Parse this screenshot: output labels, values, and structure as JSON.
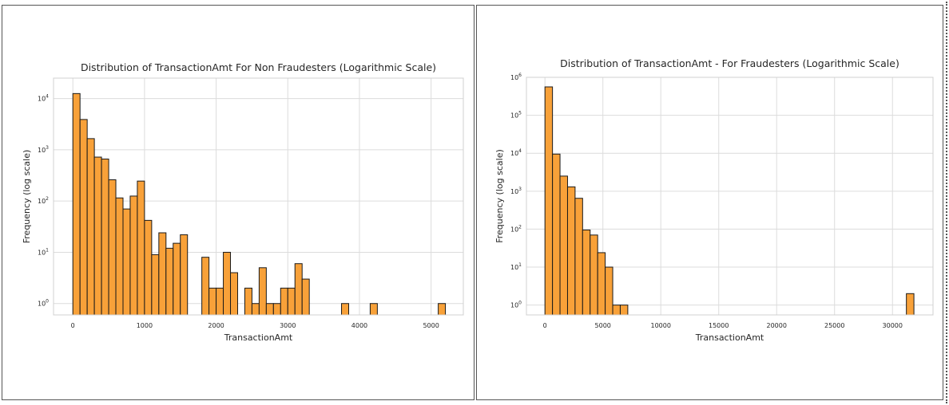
{
  "chart_data": [
    {
      "type": "bar",
      "title": "Distribution of TransactionAmt For Non Fraudesters (Logarithmic Scale)",
      "xlabel": "TransactionAmt",
      "ylabel": "Frequency (log scale)",
      "yscale": "log",
      "xlim": [
        -270,
        5450
      ],
      "ylim": [
        0.6,
        25000
      ],
      "x_ticks": [
        0,
        1000,
        2000,
        3000,
        4000,
        5000
      ],
      "x_tick_labels": [
        "0",
        "1000",
        "2000",
        "3000",
        "4000",
        "5000"
      ],
      "y_ticks": [
        1,
        10,
        100,
        1000,
        10000
      ],
      "y_tick_labels": [
        {
          "base": "10",
          "exp": "0"
        },
        {
          "base": "10",
          "exp": "1"
        },
        {
          "base": "10",
          "exp": "2"
        },
        {
          "base": "10",
          "exp": "3"
        },
        {
          "base": "10",
          "exp": "4"
        }
      ],
      "grid": true,
      "bar_color": "#f8a139",
      "edge_color": "#1a1a1a",
      "bins": [
        {
          "x0": 0,
          "x1": 100,
          "value": 12500
        },
        {
          "x0": 100,
          "x1": 200,
          "value": 3900
        },
        {
          "x0": 200,
          "x1": 300,
          "value": 1650
        },
        {
          "x0": 300,
          "x1": 400,
          "value": 720
        },
        {
          "x0": 400,
          "x1": 500,
          "value": 660
        },
        {
          "x0": 500,
          "x1": 600,
          "value": 260
        },
        {
          "x0": 600,
          "x1": 700,
          "value": 115
        },
        {
          "x0": 700,
          "x1": 800,
          "value": 70
        },
        {
          "x0": 800,
          "x1": 900,
          "value": 125
        },
        {
          "x0": 900,
          "x1": 1000,
          "value": 245
        },
        {
          "x0": 1000,
          "x1": 1100,
          "value": 42
        },
        {
          "x0": 1100,
          "x1": 1200,
          "value": 9
        },
        {
          "x0": 1200,
          "x1": 1300,
          "value": 24
        },
        {
          "x0": 1300,
          "x1": 1400,
          "value": 12
        },
        {
          "x0": 1400,
          "x1": 1500,
          "value": 15
        },
        {
          "x0": 1500,
          "x1": 1600,
          "value": 22
        },
        {
          "x0": 1800,
          "x1": 1900,
          "value": 8
        },
        {
          "x0": 1900,
          "x1": 2000,
          "value": 2
        },
        {
          "x0": 2000,
          "x1": 2100,
          "value": 2
        },
        {
          "x0": 2100,
          "x1": 2200,
          "value": 10
        },
        {
          "x0": 2200,
          "x1": 2300,
          "value": 4
        },
        {
          "x0": 2400,
          "x1": 2500,
          "value": 2
        },
        {
          "x0": 2500,
          "x1": 2600,
          "value": 1
        },
        {
          "x0": 2600,
          "x1": 2700,
          "value": 5
        },
        {
          "x0": 2700,
          "x1": 2800,
          "value": 1
        },
        {
          "x0": 2800,
          "x1": 2900,
          "value": 1
        },
        {
          "x0": 2900,
          "x1": 3000,
          "value": 2
        },
        {
          "x0": 3000,
          "x1": 3100,
          "value": 2
        },
        {
          "x0": 3100,
          "x1": 3200,
          "value": 6
        },
        {
          "x0": 3200,
          "x1": 3300,
          "value": 3
        },
        {
          "x0": 3750,
          "x1": 3850,
          "value": 1
        },
        {
          "x0": 4150,
          "x1": 4250,
          "value": 1
        },
        {
          "x0": 5100,
          "x1": 5200,
          "value": 1
        }
      ]
    },
    {
      "type": "bar",
      "title": "Distribution of TransactionAmt - For Fraudesters (Logarithmic Scale)",
      "xlabel": "TransactionAmt",
      "ylabel": "Frequency (log scale)",
      "yscale": "log",
      "xlim": [
        -1600,
        33500
      ],
      "ylim": [
        0.55,
        1000000
      ],
      "x_ticks": [
        0,
        5000,
        10000,
        15000,
        20000,
        25000,
        30000
      ],
      "x_tick_labels": [
        "0",
        "5000",
        "10000",
        "15000",
        "20000",
        "25000",
        "30000"
      ],
      "y_ticks": [
        1,
        10,
        100,
        1000,
        10000,
        100000,
        1000000
      ],
      "y_tick_labels": [
        {
          "base": "10",
          "exp": "0"
        },
        {
          "base": "10",
          "exp": "1"
        },
        {
          "base": "10",
          "exp": "2"
        },
        {
          "base": "10",
          "exp": "3"
        },
        {
          "base": "10",
          "exp": "4"
        },
        {
          "base": "10",
          "exp": "5"
        },
        {
          "base": "10",
          "exp": "6"
        }
      ],
      "grid": true,
      "bar_color": "#f8a139",
      "edge_color": "#1a1a1a",
      "bins": [
        {
          "x0": 0,
          "x1": 650,
          "value": 560000
        },
        {
          "x0": 650,
          "x1": 1300,
          "value": 9500
        },
        {
          "x0": 1300,
          "x1": 1950,
          "value": 2500
        },
        {
          "x0": 1950,
          "x1": 2600,
          "value": 1300
        },
        {
          "x0": 2600,
          "x1": 3250,
          "value": 650
        },
        {
          "x0": 3250,
          "x1": 3900,
          "value": 95
        },
        {
          "x0": 3900,
          "x1": 4550,
          "value": 70
        },
        {
          "x0": 4550,
          "x1": 5200,
          "value": 24
        },
        {
          "x0": 5200,
          "x1": 5850,
          "value": 10
        },
        {
          "x0": 5850,
          "x1": 6500,
          "value": 1
        },
        {
          "x0": 6500,
          "x1": 7150,
          "value": 1
        },
        {
          "x0": 31200,
          "x1": 31850,
          "value": 2
        }
      ]
    }
  ]
}
